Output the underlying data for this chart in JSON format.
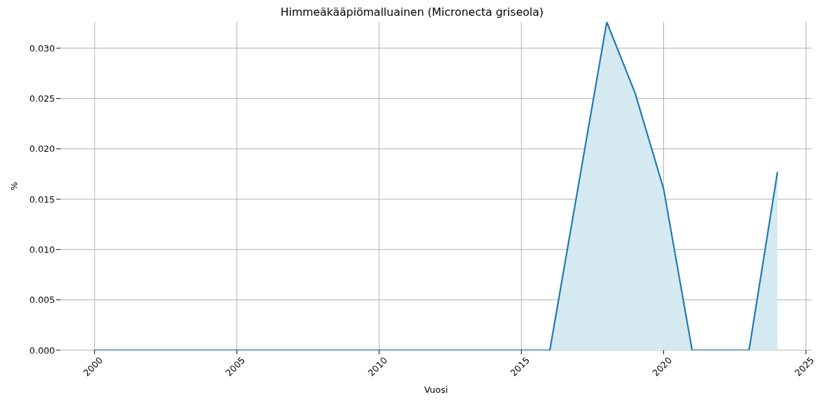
{
  "chart_data": {
    "type": "area",
    "title": "Himmeäkääpiömalluainen (Micronecta griseola)",
    "xlabel": "Vuosi",
    "ylabel": "%",
    "x": [
      2000,
      2001,
      2002,
      2003,
      2004,
      2005,
      2006,
      2007,
      2008,
      2009,
      2010,
      2011,
      2012,
      2013,
      2014,
      2015,
      2016,
      2017,
      2018,
      2019,
      2020,
      2021,
      2022,
      2023,
      2024
    ],
    "series": [
      {
        "color": "#1f77b4",
        "values": [
          0,
          0,
          0,
          0,
          0,
          0,
          0,
          0,
          0,
          0,
          0,
          0,
          0,
          0,
          0,
          0,
          0,
          0.0163,
          0.0326,
          0.0255,
          0.016,
          0,
          0,
          0,
          0.0177
        ]
      }
    ],
    "xlim": [
      1998.8,
      2025.2
    ],
    "xticks": [
      2000,
      2005,
      2010,
      2015,
      2020,
      2025
    ],
    "ylim": [
      0,
      0.0326
    ],
    "yticks": [
      {
        "value": 0,
        "label": "0.000"
      },
      0.005,
      {
        "value": 0.01,
        "label": "0.010"
      },
      0.015,
      {
        "value": 0.02,
        "label": "0.020"
      },
      0.025,
      {
        "value": 0.03,
        "label": "0.030"
      }
    ],
    "grid": true,
    "legend": false
  }
}
